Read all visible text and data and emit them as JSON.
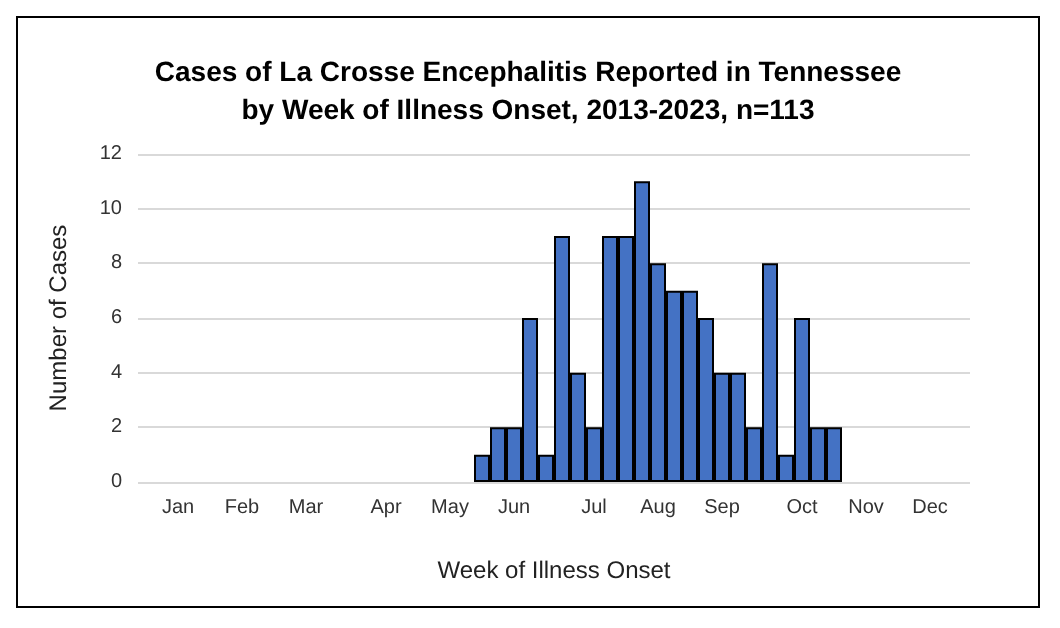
{
  "chart_data": {
    "type": "bar",
    "title": "Cases of La Crosse Encephalitis Reported in Tennessee\nby Week of Illness Onset, 2013-2023, n=113",
    "xlabel": "Week of Illness Onset",
    "ylabel": "Number of Cases",
    "categories": [
      null,
      null,
      "Jan",
      null,
      null,
      null,
      "Feb",
      null,
      null,
      null,
      "Mar",
      null,
      null,
      null,
      null,
      "Apr",
      null,
      null,
      null,
      "May",
      null,
      null,
      null,
      "Jun",
      null,
      null,
      null,
      null,
      "Jul",
      null,
      null,
      null,
      "Aug",
      null,
      null,
      null,
      "Sep",
      null,
      null,
      null,
      null,
      "Oct",
      null,
      null,
      null,
      "Nov",
      null,
      null,
      null,
      "Dec",
      null,
      null
    ],
    "values": [
      null,
      null,
      null,
      null,
      null,
      null,
      null,
      null,
      null,
      null,
      null,
      null,
      null,
      null,
      null,
      null,
      null,
      null,
      null,
      null,
      null,
      1,
      2,
      2,
      6,
      1,
      9,
      4,
      2,
      9,
      9,
      11,
      8,
      7,
      7,
      6,
      4,
      4,
      2,
      8,
      1,
      6,
      2,
      2,
      null,
      null,
      null,
      null,
      null,
      null,
      null,
      null
    ],
    "color": "#4472c4",
    "ylim": [
      0,
      12
    ],
    "yticks": [
      0,
      2,
      4,
      6,
      8,
      10,
      12
    ],
    "grid": "y"
  }
}
